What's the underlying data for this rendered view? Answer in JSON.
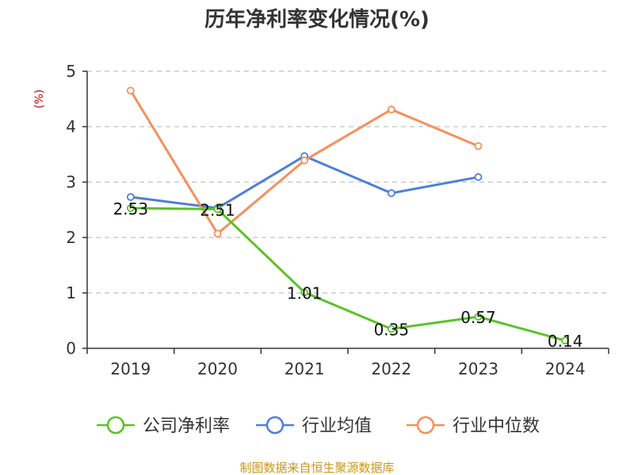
{
  "colors": {
    "company": "#5bc225",
    "industry_avg": "#4e7fd8",
    "industry_median": "#f5905c",
    "ylabel": "#cc0000",
    "source": "#c8961e",
    "grid": "#cccccc",
    "axis": "#333333"
  },
  "source_text": "制图数据来自恒生聚源数据库",
  "chart_data": {
    "type": "line",
    "title": "历年净利率变化情况(%)",
    "ylabel": "(%)",
    "xlabel": "",
    "categories": [
      "2019",
      "2020",
      "2021",
      "2022",
      "2023",
      "2024"
    ],
    "ylim": [
      0,
      5
    ],
    "yticks": [
      0,
      1,
      2,
      3,
      4,
      5
    ],
    "grid": true,
    "legend_position": "bottom-center",
    "series": [
      {
        "name": "公司净利率",
        "color_key": "company",
        "values": [
          2.53,
          2.51,
          1.01,
          0.35,
          0.57,
          0.14
        ],
        "show_labels": true,
        "labels": [
          "2.53",
          "2.51",
          "1.01",
          "0.35",
          "0.57",
          "0.14"
        ]
      },
      {
        "name": "行业均值",
        "color_key": "industry_avg",
        "values": [
          2.73,
          2.53,
          3.47,
          2.8,
          3.09,
          null
        ],
        "show_labels": false
      },
      {
        "name": "行业中位数",
        "color_key": "industry_median",
        "values": [
          4.65,
          2.07,
          3.39,
          4.31,
          3.65,
          null
        ],
        "show_labels": false
      }
    ]
  }
}
